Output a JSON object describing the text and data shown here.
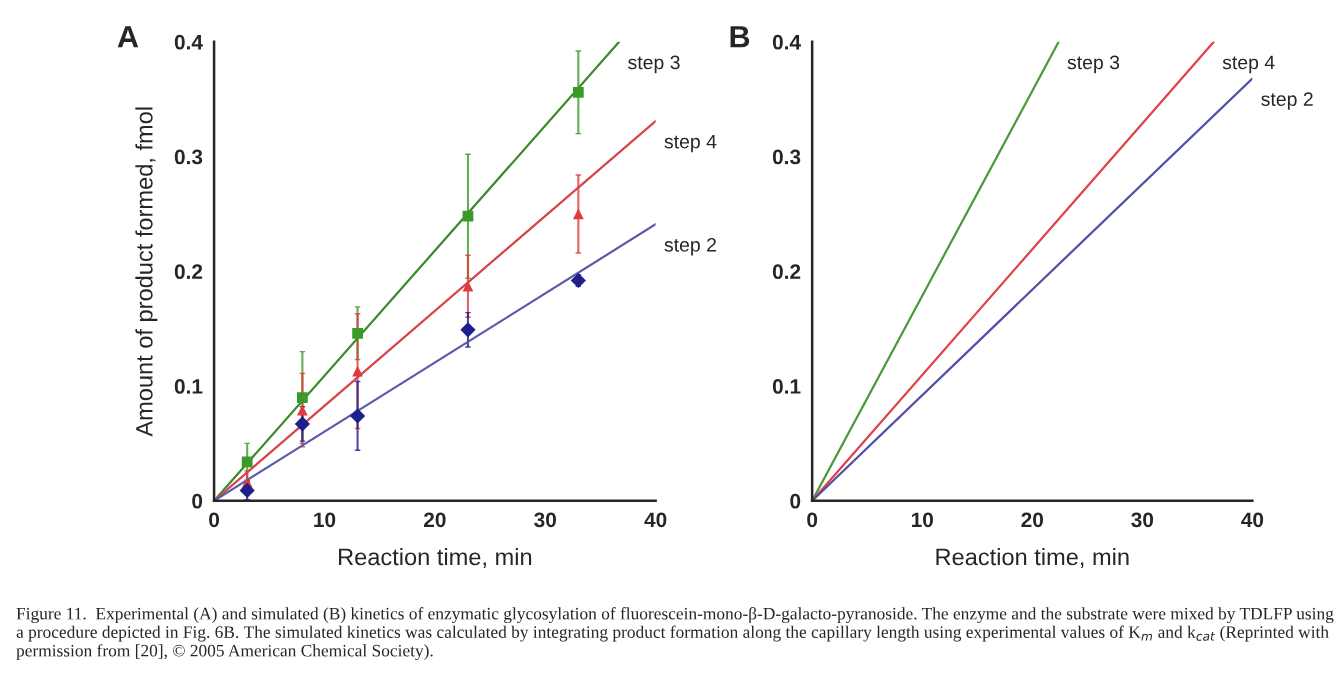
{
  "chart_data": [
    {
      "type": "scatter",
      "title": "A",
      "xlabel": "Reaction time, min",
      "ylabel": "Amount of product formed, fmol",
      "xlim": [
        0,
        40
      ],
      "ylim": [
        0,
        0.4
      ],
      "xticks": [
        0,
        10,
        20,
        30,
        40
      ],
      "yticks": [
        0,
        0.1,
        0.2,
        0.3,
        0.4
      ],
      "grid": false,
      "legend": false,
      "x": [
        3,
        8,
        13,
        23,
        33
      ],
      "series": [
        {
          "type": "scatter",
          "marker": "square",
          "color": "#3a9a2a",
          "values": [
            0.034,
            0.09,
            0.146,
            0.248,
            0.356
          ],
          "errors": [
            0.016,
            0.04,
            0.023,
            0.054,
            0.036
          ]
        },
        {
          "type": "scatter",
          "marker": "triangle",
          "color": "#e03a3a",
          "values": [
            0.016,
            0.079,
            0.113,
            0.187,
            0.25
          ],
          "errors": [
            0.01,
            0.032,
            0.05,
            0.027,
            0.034
          ]
        },
        {
          "type": "scatter",
          "marker": "diamond",
          "color": "#1e1e8c",
          "values": [
            0.009,
            0.067,
            0.074,
            0.149,
            0.192
          ],
          "errors": [
            0.008,
            0.015,
            0.03,
            0.015,
            0.005
          ]
        },
        {
          "type": "line",
          "marker": "none",
          "name": "step 3",
          "color": "#3a8a2a",
          "x": [
            0,
            36.7
          ],
          "values": [
            0,
            0.4
          ]
        },
        {
          "type": "line",
          "marker": "none",
          "name": "step 4",
          "color": "#d9424a",
          "x": [
            0,
            40
          ],
          "values": [
            0,
            0.331
          ]
        },
        {
          "type": "line",
          "marker": "none",
          "name": "step 2",
          "color": "#5a5aaa",
          "x": [
            0,
            40
          ],
          "values": [
            0,
            0.241
          ]
        }
      ],
      "annotations": [
        "Figure 11.  Experimental (A) and simulated (B) kinetics of enzymatic glycosylation of fluorescein-mono-β-D-galacto-pyranoside. The enzyme and the substrate were mixed by TDLFP using a procedure depicted in Fig. 6B. The simulated kinetics was calculated by integrating product formation along the capillary length using experimental values of K$_{m}$ and k$_{cat}$ (Reprinted with permission from [20], © 2005 American Chemical Society)."
      ]
    },
    {
      "type": "line",
      "title": "B",
      "xlabel": "Reaction time, min",
      "xlim": [
        0,
        40
      ],
      "ylim": [
        0,
        0.4
      ],
      "xticks": [
        0,
        10,
        20,
        30,
        40
      ],
      "yticks": [
        0,
        0.1,
        0.2,
        0.3,
        0.4
      ],
      "grid": false,
      "legend": false,
      "marker": "none",
      "series": [
        {
          "name": "step 3",
          "color": "#4a9a3a",
          "x": [
            0,
            22.4
          ],
          "values": [
            0,
            0.4
          ]
        },
        {
          "name": "step 4",
          "color": "#e0404a",
          "x": [
            0,
            36.5
          ],
          "values": [
            0,
            0.4
          ]
        },
        {
          "name": "step 2",
          "color": "#5050a8",
          "x": [
            0,
            40
          ],
          "values": [
            0,
            0.368
          ]
        }
      ]
    }
  ]
}
